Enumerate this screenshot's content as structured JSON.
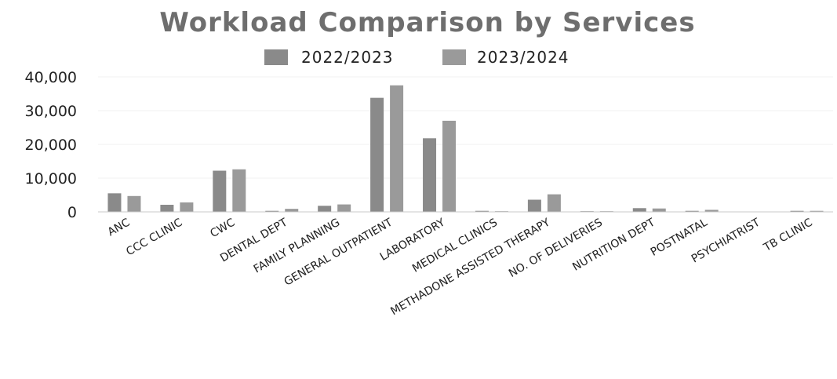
{
  "chart_data": {
    "type": "bar",
    "title": "Workload Comparison by Services",
    "categories": [
      "ANC",
      "CCC CLINIC",
      "CWC",
      "DENTAL DEPT",
      "FAMILY PLANNING",
      "GENERAL OUTPATIENT",
      "LABORATORY",
      "MEDICAL CLINICS",
      "METHADONE ASSISTED THERAPY",
      "NO. OF DELIVERIES",
      "NUTRITION DEPT",
      "POSTNATAL",
      "PSYCHIATRIST",
      "TB CLINIC"
    ],
    "series": [
      {
        "name": "2022/2023",
        "color": "#8a8a8a",
        "values": [
          5500,
          2100,
          12200,
          300,
          1800,
          33800,
          21800,
          300,
          3600,
          200,
          1100,
          300,
          100,
          300
        ]
      },
      {
        "name": "2023/2024",
        "color": "#9a9a9a",
        "values": [
          4700,
          2800,
          12600,
          900,
          2200,
          37500,
          27000,
          200,
          5200,
          200,
          1000,
          600,
          100,
          300
        ]
      }
    ],
    "ylim": [
      0,
      40000
    ],
    "yticks": [
      "0",
      "10,000",
      "20,000",
      "30,000",
      "40,000"
    ],
    "ytick_values": [
      0,
      10000,
      20000,
      30000,
      40000
    ],
    "legend_position": "top-center",
    "grid": true
  }
}
